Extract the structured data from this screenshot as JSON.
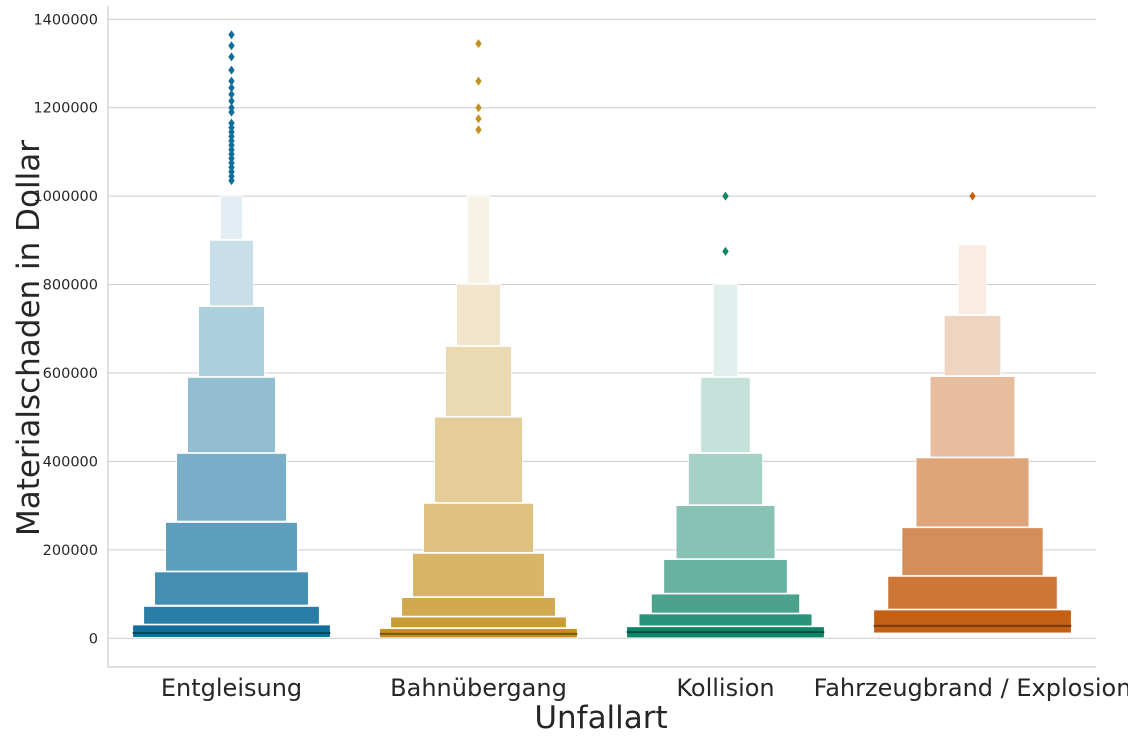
{
  "chart_data": {
    "type": "boxen",
    "xlabel": "Unfallart",
    "ylabel": "Materialschaden in Dollar",
    "ylim": [
      -65000,
      1430000
    ],
    "yticks": [
      0,
      200000,
      400000,
      600000,
      800000,
      1000000,
      1200000,
      1400000
    ],
    "ytick_labels": [
      "0",
      "200000",
      "400000",
      "600000",
      "800000",
      "1000000",
      "1200000",
      "1400000"
    ],
    "grid": "horizontal",
    "categories": [
      "Entgleisung",
      "Bahnübergang",
      "Kollision",
      "Fahrzeugbrand / Explosion"
    ],
    "series": [
      {
        "category": "Entgleisung",
        "color": "#0f6e9c",
        "median": 12000,
        "boxes": [
          {
            "low": 2000,
            "high": 30000
          },
          {
            "low": 32000,
            "high": 72000
          },
          {
            "low": 75000,
            "high": 150000
          },
          {
            "low": 152000,
            "high": 262000
          },
          {
            "low": 265000,
            "high": 418000
          },
          {
            "low": 420000,
            "high": 590000
          },
          {
            "low": 592000,
            "high": 750000
          },
          {
            "low": 752000,
            "high": 900000
          },
          {
            "low": 902000,
            "high": 1000000
          }
        ],
        "outliers": [
          1035000,
          1045000,
          1055000,
          1065000,
          1075000,
          1085000,
          1095000,
          1105000,
          1115000,
          1125000,
          1135000,
          1145000,
          1155000,
          1165000,
          1190000,
          1200000,
          1215000,
          1230000,
          1245000,
          1260000,
          1285000,
          1315000,
          1340000,
          1365000
        ]
      },
      {
        "category": "Bahnübergang",
        "color": "#c5901c",
        "median": 10000,
        "boxes": [
          {
            "low": 1000,
            "high": 22000
          },
          {
            "low": 24000,
            "high": 48000
          },
          {
            "low": 50000,
            "high": 92000
          },
          {
            "low": 94000,
            "high": 192000
          },
          {
            "low": 194000,
            "high": 305000
          },
          {
            "low": 307000,
            "high": 500000
          },
          {
            "low": 502000,
            "high": 660000
          },
          {
            "low": 662000,
            "high": 800000
          },
          {
            "low": 802000,
            "high": 1000000
          }
        ],
        "outliers": [
          1150000,
          1175000,
          1200000,
          1260000,
          1345000
        ]
      },
      {
        "category": "Kollision",
        "color": "#0e8468",
        "median": 14000,
        "boxes": [
          {
            "low": 1000,
            "high": 26000
          },
          {
            "low": 28000,
            "high": 55000
          },
          {
            "low": 57000,
            "high": 100000
          },
          {
            "low": 102000,
            "high": 178000
          },
          {
            "low": 180000,
            "high": 300000
          },
          {
            "low": 302000,
            "high": 418000
          },
          {
            "low": 420000,
            "high": 590000
          },
          {
            "low": 592000,
            "high": 800000
          }
        ],
        "outliers": [
          875000,
          1000000
        ]
      },
      {
        "category": "Fahrzeugbrand / Explosion",
        "color": "#c45f14",
        "median": 28000,
        "boxes": [
          {
            "low": 12000,
            "high": 64000
          },
          {
            "low": 66000,
            "high": 140000
          },
          {
            "low": 142000,
            "high": 250000
          },
          {
            "low": 252000,
            "high": 408000
          },
          {
            "low": 410000,
            "high": 592000
          },
          {
            "low": 594000,
            "high": 730000
          },
          {
            "low": 732000,
            "high": 890000
          }
        ],
        "outliers": [
          1000000
        ]
      }
    ]
  }
}
